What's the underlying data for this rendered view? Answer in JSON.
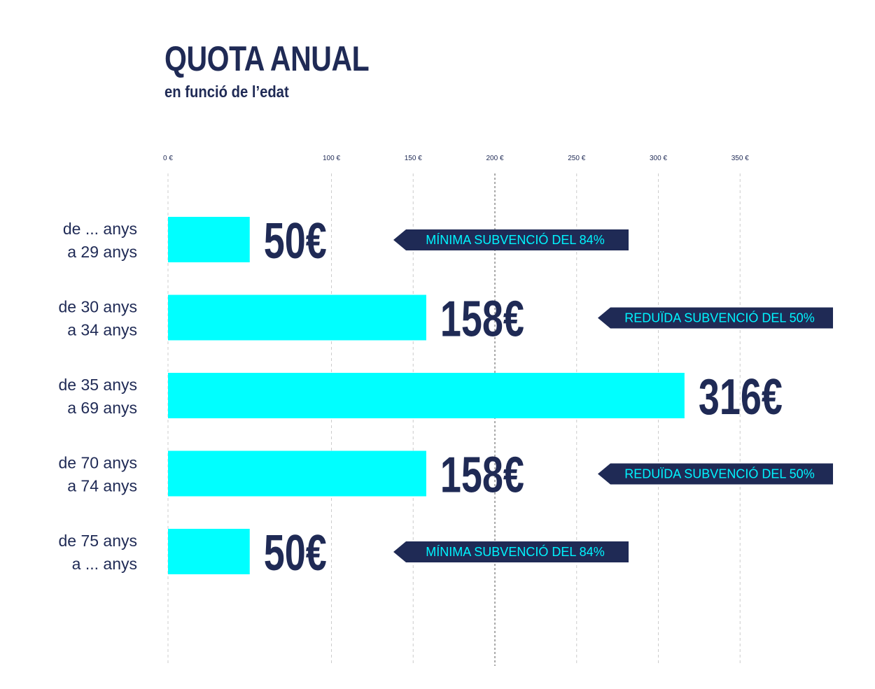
{
  "header": {
    "title": "QUOTA ANUAL",
    "subtitle": "en funció de l’edat"
  },
  "colors": {
    "bar": "#00ffff",
    "text": "#1f2a55",
    "badge_bg": "#1f2a55",
    "badge_text": "#00f5ff",
    "grid": "#cccccc",
    "grid_highlight": "#555555"
  },
  "chart_data": {
    "type": "bar",
    "orientation": "horizontal",
    "title": "QUOTA ANUAL",
    "subtitle": "en funció de l’edat",
    "xlabel": "",
    "ylabel": "",
    "xlim": [
      0,
      400
    ],
    "x_ticks": [
      0,
      100,
      150,
      200,
      250,
      300,
      350
    ],
    "x_tick_labels": [
      "0 €",
      "100 €",
      "150 €",
      "200 €",
      "250 €",
      "300 €",
      "350 €"
    ],
    "grid": true,
    "highlight_gridline": 200,
    "categories": [
      [
        "de ... anys",
        "a 29 anys"
      ],
      [
        "de 30 anys",
        "a 34 anys"
      ],
      [
        "de 35 anys",
        "a 69 anys"
      ],
      [
        "de 70 anys",
        "a 74 anys"
      ],
      [
        "de 75 anys",
        "a ... anys"
      ]
    ],
    "values": [
      50,
      158,
      316,
      158,
      50
    ],
    "value_labels": [
      "50€",
      "158€",
      "316€",
      "158€",
      "50€"
    ],
    "annotations": [
      "MÍNIMA SUBVENCIÓ DEL 84%",
      "REDUÏDA SUBVENCIÓ DEL 50%",
      "",
      "REDUÏDA SUBVENCIÓ DEL 50%",
      "MÍNIMA SUBVENCIÓ DEL 84%"
    ]
  }
}
